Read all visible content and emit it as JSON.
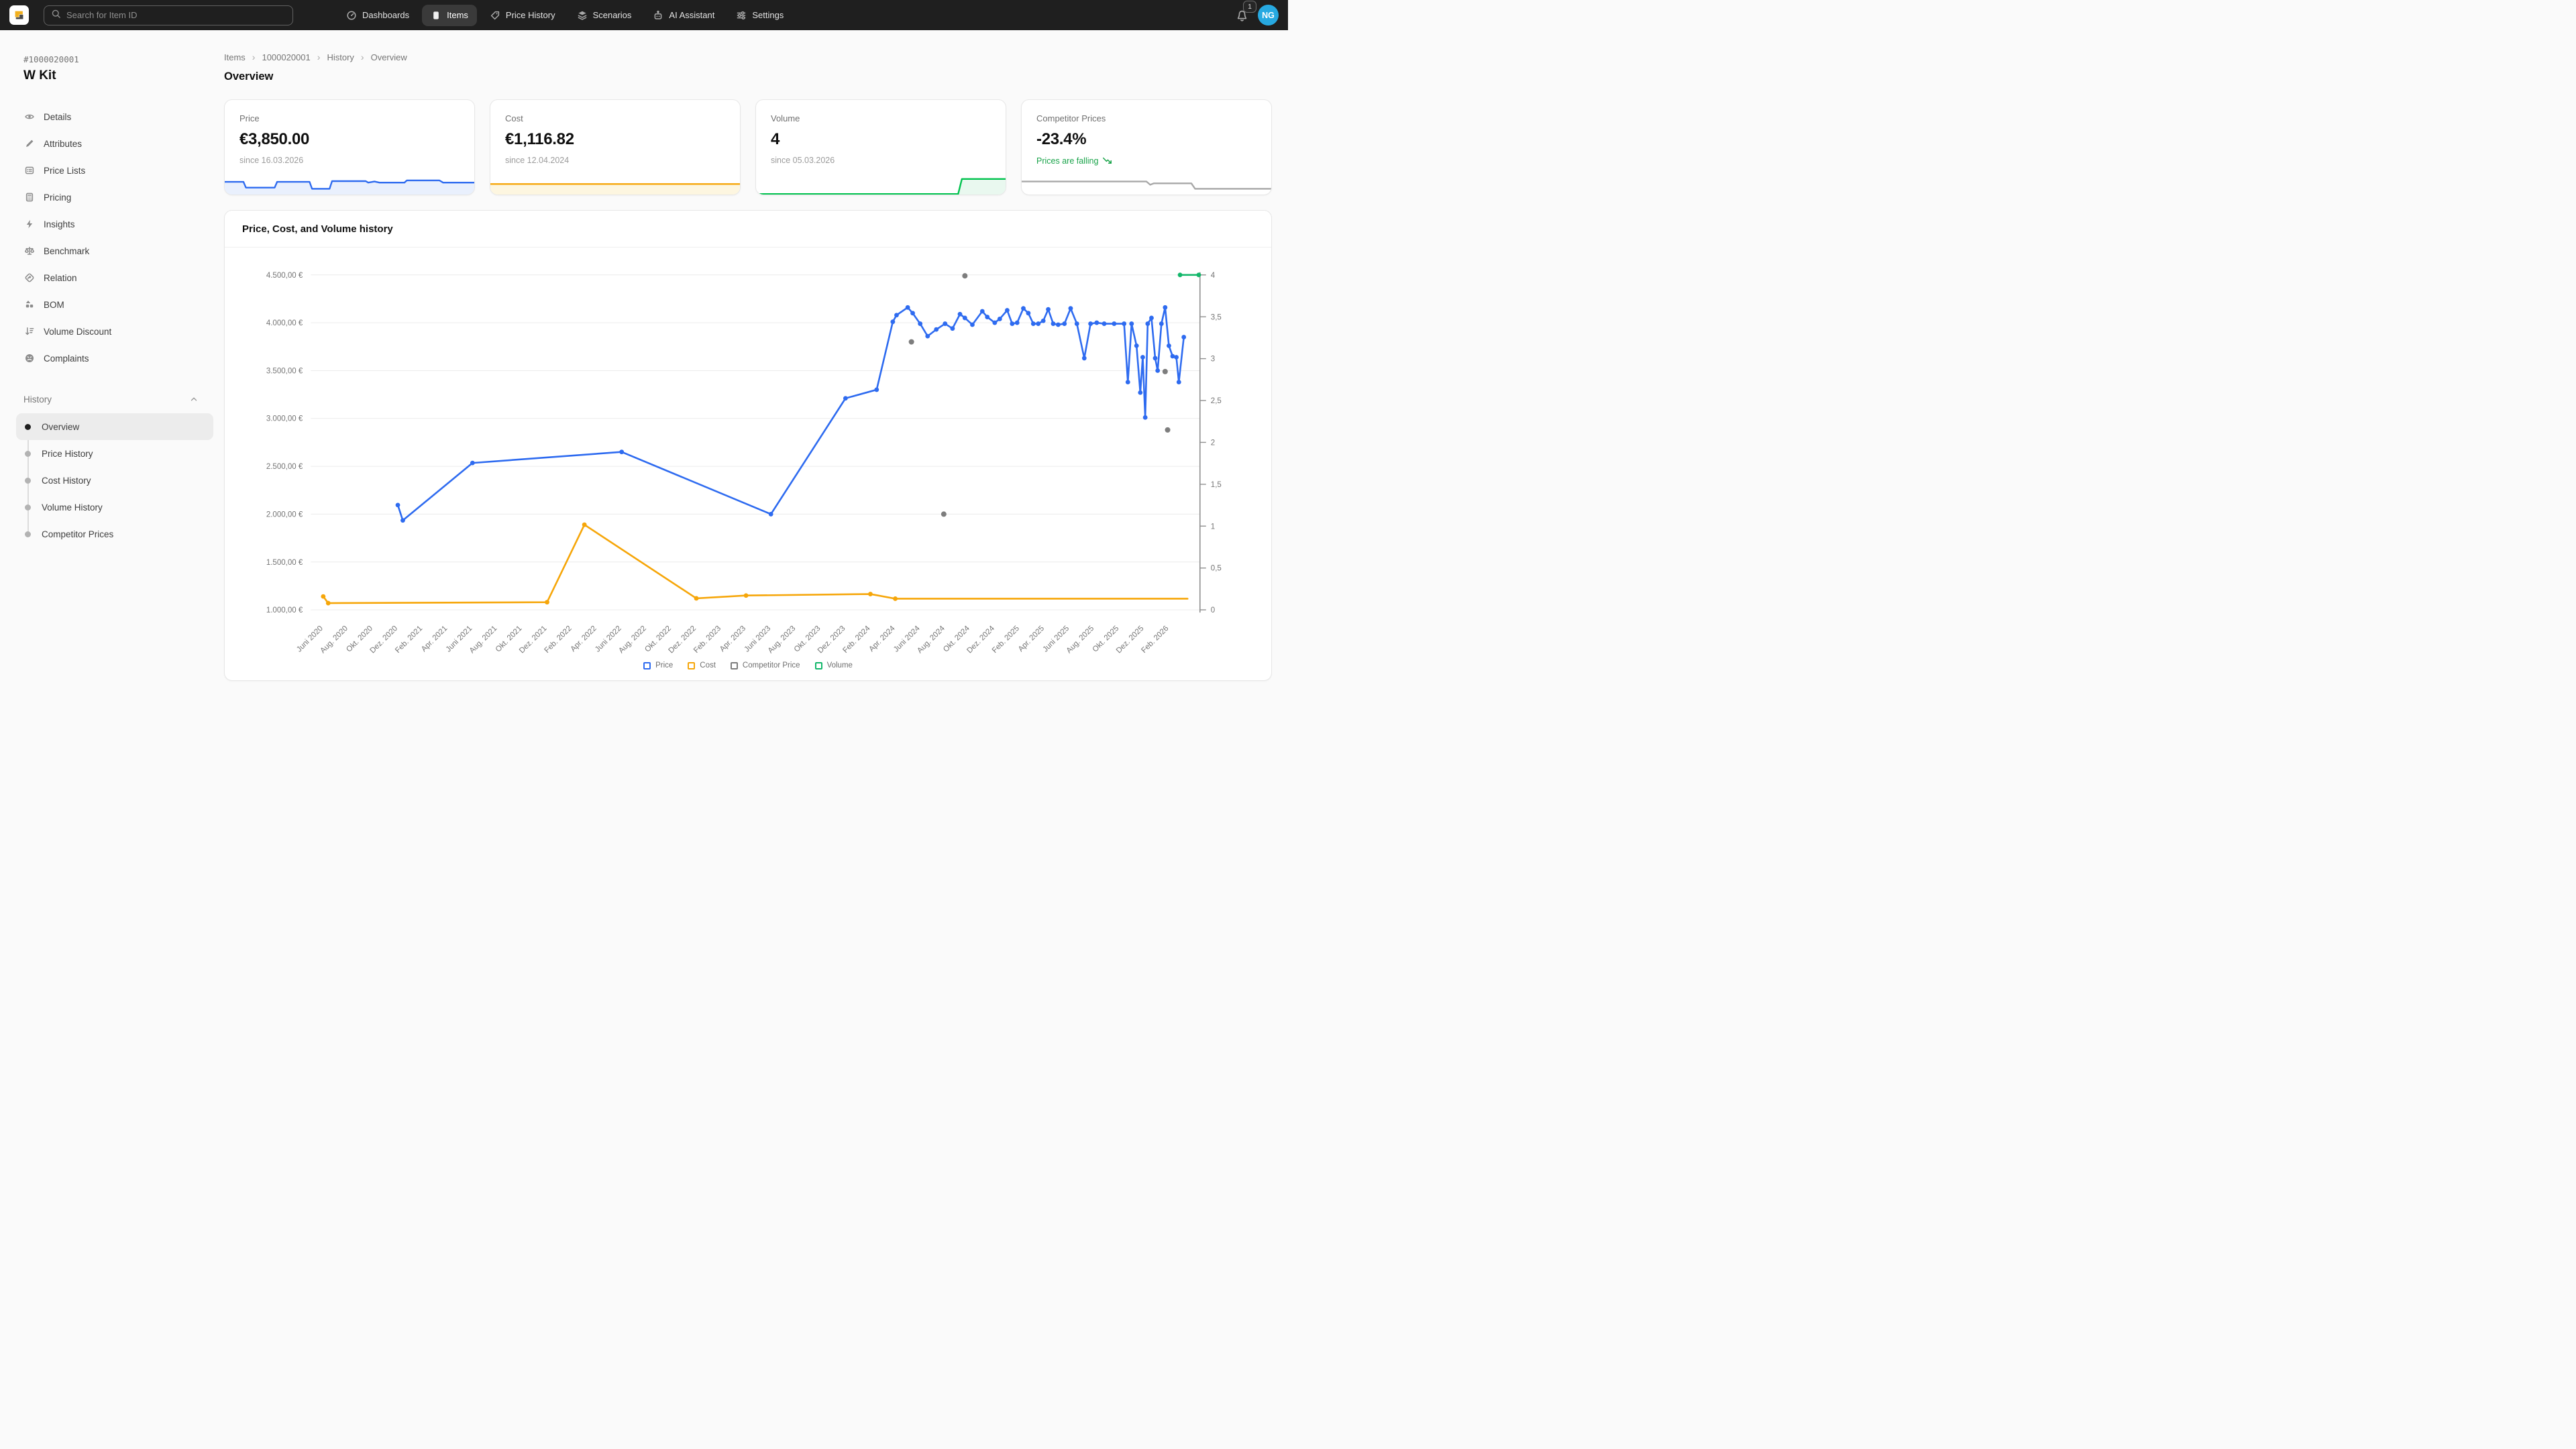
{
  "navbar": {
    "search_placeholder": "Search for Item ID",
    "items": [
      {
        "label": "Dashboards",
        "icon": "gauge-icon",
        "active": false
      },
      {
        "label": "Items",
        "icon": "box-icon",
        "active": true
      },
      {
        "label": "Price History",
        "icon": "tag-icon",
        "active": false
      },
      {
        "label": "Scenarios",
        "icon": "layers-icon",
        "active": false
      },
      {
        "label": "AI Assistant",
        "icon": "robot-icon",
        "active": false
      },
      {
        "label": "Settings",
        "icon": "sliders-icon",
        "active": false
      }
    ],
    "notification_count": "1",
    "avatar_initials": "NG"
  },
  "sidebar": {
    "item_id": "#1000020001",
    "item_name": "W Kit",
    "menu": [
      {
        "label": "Details",
        "icon": "eye-icon"
      },
      {
        "label": "Attributes",
        "icon": "pencil-icon"
      },
      {
        "label": "Price Lists",
        "icon": "list-icon"
      },
      {
        "label": "Pricing",
        "icon": "calculator-icon"
      },
      {
        "label": "Insights",
        "icon": "bolt-icon"
      },
      {
        "label": "Benchmark",
        "icon": "scales-icon"
      },
      {
        "label": "Relation",
        "icon": "relation-icon"
      },
      {
        "label": "BOM",
        "icon": "shapes-icon"
      },
      {
        "label": "Volume Discount",
        "icon": "volume-discount-icon"
      },
      {
        "label": "Complaints",
        "icon": "frown-icon"
      }
    ],
    "history_section": {
      "label": "History",
      "items": [
        {
          "label": "Overview",
          "active": true
        },
        {
          "label": "Price History",
          "active": false
        },
        {
          "label": "Cost History",
          "active": false
        },
        {
          "label": "Volume History",
          "active": false
        },
        {
          "label": "Competitor Prices",
          "active": false
        }
      ]
    }
  },
  "breadcrumb": [
    "Items",
    "1000020001",
    "History",
    "Overview"
  ],
  "page_title": "Overview",
  "kpi_cards": [
    {
      "title": "Price",
      "value": "€3,850.00",
      "subtitle": "since 16.03.2026",
      "trend": false,
      "color": "#2e6bf0",
      "fill": "#e9f0fd",
      "sparkline": [
        [
          0,
          0.3
        ],
        [
          0.075,
          0.3
        ],
        [
          0.085,
          0.62
        ],
        [
          0.2,
          0.62
        ],
        [
          0.21,
          0.3
        ],
        [
          0.34,
          0.3
        ],
        [
          0.35,
          0.68
        ],
        [
          0.42,
          0.68
        ],
        [
          0.43,
          0.26
        ],
        [
          0.565,
          0.26
        ],
        [
          0.575,
          0.34
        ],
        [
          0.6,
          0.28
        ],
        [
          0.62,
          0.34
        ],
        [
          0.72,
          0.34
        ],
        [
          0.73,
          0.22
        ],
        [
          0.86,
          0.22
        ],
        [
          0.875,
          0.34
        ],
        [
          1,
          0.34
        ]
      ]
    },
    {
      "title": "Cost",
      "value": "€1,116.82",
      "subtitle": "since 12.04.2024",
      "trend": false,
      "color": "#f6a609",
      "fill": "#fdf6e0",
      "sparkline": [
        [
          0,
          0.42
        ],
        [
          1,
          0.42
        ]
      ]
    },
    {
      "title": "Volume",
      "value": "4",
      "subtitle": "since 05.03.2026",
      "trend": false,
      "color": "#00c24e",
      "fill": "#e9f8ef",
      "sparkline": [
        [
          0,
          0.97
        ],
        [
          0.81,
          0.97
        ],
        [
          0.825,
          0.14
        ],
        [
          1,
          0.14
        ]
      ]
    },
    {
      "title": "Competitor Prices",
      "value": "-23.4%",
      "subtitle": "Prices are falling",
      "trend": true,
      "color": "#a8a8a8",
      "fill": "none",
      "sparkline": [
        [
          0,
          0.28
        ],
        [
          0.5,
          0.28
        ],
        [
          0.515,
          0.46
        ],
        [
          0.53,
          0.38
        ],
        [
          0.68,
          0.38
        ],
        [
          0.695,
          0.68
        ],
        [
          1,
          0.68
        ]
      ]
    }
  ],
  "chart_card": {
    "title": "Price, Cost, and Volume history"
  },
  "chart_data": {
    "type": "line",
    "title": "Price, Cost, and Volume history",
    "x_unit": "months since 2020-06",
    "x_tick_step_months": 2,
    "x_tick_labels": [
      "Juni 2020",
      "Aug. 2020",
      "Okt. 2020",
      "Dez. 2020",
      "Feb. 2021",
      "Apr. 2021",
      "Juni 2021",
      "Aug. 2021",
      "Okt. 2021",
      "Dez. 2021",
      "Feb. 2022",
      "Apr. 2022",
      "Juni 2022",
      "Aug. 2022",
      "Okt. 2022",
      "Dez. 2022",
      "Feb. 2023",
      "Apr. 2023",
      "Juni 2023",
      "Aug. 2023",
      "Okt. 2023",
      "Dez. 2023",
      "Feb. 2024",
      "Apr. 2024",
      "Juni 2024",
      "Aug. 2024",
      "Okt. 2024",
      "Dez. 2024",
      "Feb. 2025",
      "Apr. 2025",
      "Juni 2025",
      "Aug. 2025",
      "Okt. 2025",
      "Dez. 2025",
      "Feb. 2026"
    ],
    "y_left": {
      "min": 1000,
      "max": 4500,
      "tick_values": [
        4500,
        4000,
        3500,
        3000,
        2500,
        2000,
        1500,
        1000
      ],
      "tick_labels": [
        "4.500,00 €",
        "4.000,00 €",
        "3.500,00 €",
        "3.000,00 €",
        "2.500,00 €",
        "2.000,00 €",
        "1.500,00 €",
        "1.000,00 €"
      ]
    },
    "y_right": {
      "min": 0,
      "max": 4,
      "tick_values": [
        4,
        3.5,
        3,
        2.5,
        2,
        1.5,
        1,
        0.5,
        0
      ],
      "tick_labels": [
        "4",
        "3,5",
        "3",
        "2,5",
        "2",
        "1,5",
        "1",
        "0,5",
        "0"
      ]
    },
    "grid": true,
    "legend_position": "bottom",
    "legend": [
      {
        "name": "Price",
        "color": "#2e6bf0"
      },
      {
        "name": "Cost",
        "color": "#f6a609"
      },
      {
        "name": "Competitor Price",
        "color": "#7d7d7d"
      },
      {
        "name": "Volume",
        "color": "#12b76a"
      }
    ],
    "series": [
      {
        "name": "Price",
        "axis": "left",
        "color": "#2e6bf0",
        "style": "line-markers",
        "points": [
          [
            6,
            2095
          ],
          [
            6.4,
            1935
          ],
          [
            12,
            2535
          ],
          [
            24,
            2650
          ],
          [
            36,
            2000
          ],
          [
            42,
            3210
          ],
          [
            44.5,
            3300
          ],
          [
            45.8,
            4010
          ],
          [
            46.1,
            4080
          ],
          [
            47,
            4160
          ],
          [
            47.4,
            4100
          ],
          [
            48,
            3990
          ],
          [
            48.6,
            3860
          ],
          [
            49.3,
            3930
          ],
          [
            50,
            3990
          ],
          [
            50.6,
            3940
          ],
          [
            51.2,
            4090
          ],
          [
            51.6,
            4050
          ],
          [
            52.2,
            3980
          ],
          [
            53,
            4120
          ],
          [
            53.4,
            4060
          ],
          [
            54,
            4000
          ],
          [
            54.4,
            4040
          ],
          [
            55,
            4130
          ],
          [
            55.4,
            3990
          ],
          [
            55.8,
            4000
          ],
          [
            56.3,
            4150
          ],
          [
            56.7,
            4100
          ],
          [
            57.1,
            3990
          ],
          [
            57.5,
            3990
          ],
          [
            57.9,
            4020
          ],
          [
            58.3,
            4140
          ],
          [
            58.7,
            3990
          ],
          [
            59.1,
            3980
          ],
          [
            59.6,
            3990
          ],
          [
            60.1,
            4150
          ],
          [
            60.6,
            3990
          ],
          [
            61.2,
            3630
          ],
          [
            61.7,
            3990
          ],
          [
            62.2,
            4000
          ],
          [
            62.8,
            3990
          ],
          [
            63.6,
            3990
          ],
          [
            64.4,
            3990
          ],
          [
            64.7,
            3380
          ],
          [
            65,
            3990
          ],
          [
            65.4,
            3760
          ],
          [
            65.7,
            3270
          ],
          [
            65.9,
            3640
          ],
          [
            66.1,
            3010
          ],
          [
            66.3,
            3990
          ],
          [
            66.6,
            4050
          ],
          [
            66.9,
            3630
          ],
          [
            67.1,
            3500
          ],
          [
            67.4,
            3990
          ],
          [
            67.7,
            4160
          ],
          [
            68,
            3760
          ],
          [
            68.3,
            3650
          ],
          [
            68.6,
            3640
          ],
          [
            68.8,
            3380
          ],
          [
            69.2,
            3850
          ]
        ]
      },
      {
        "name": "Cost",
        "axis": "left",
        "color": "#f6a609",
        "style": "line-markers",
        "points": [
          [
            0,
            1140
          ],
          [
            0.4,
            1070
          ],
          [
            18,
            1080
          ],
          [
            21,
            1890
          ],
          [
            30,
            1120
          ],
          [
            34,
            1150
          ],
          [
            44,
            1165
          ],
          [
            46,
            1117
          ],
          [
            69.5,
            1117
          ]
        ]
      },
      {
        "name": "Competitor Price",
        "axis": "left",
        "color": "#7d7d7d",
        "style": "scatter",
        "points": [
          [
            47.3,
            3800
          ],
          [
            49.9,
            2000
          ],
          [
            51.6,
            4490
          ],
          [
            67.7,
            3490
          ],
          [
            67.9,
            2880
          ]
        ]
      },
      {
        "name": "Volume",
        "axis": "right",
        "color": "#12b76a",
        "style": "line-markers",
        "points": [
          [
            68.9,
            4
          ],
          [
            70.4,
            4
          ]
        ]
      }
    ]
  }
}
